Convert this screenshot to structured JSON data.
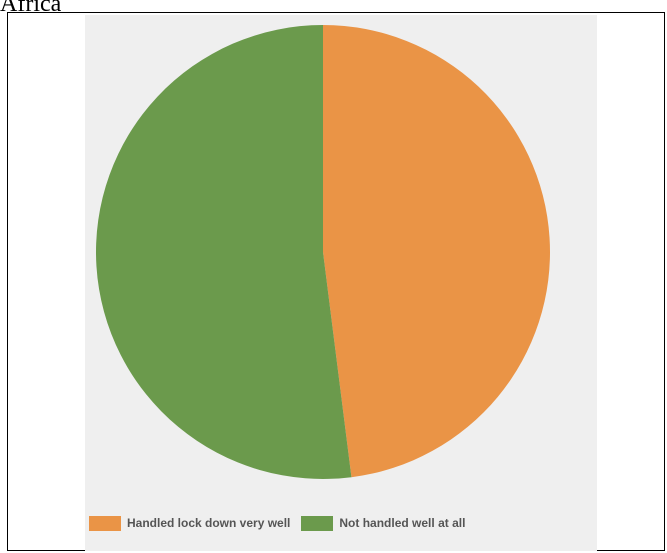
{
  "heading": "Africa",
  "colors": {
    "slice_1": "#ea9446",
    "slice_2": "#6b9a4c",
    "panel_background": "#efefef"
  },
  "chart_data": {
    "type": "pie",
    "title": "",
    "legend_position": "bottom",
    "slices": [
      {
        "label": "Handled lock down very well",
        "value": 48,
        "color": "#ea9446"
      },
      {
        "label": "Not handled well at all",
        "value": 52,
        "color": "#6b9a4c"
      }
    ]
  }
}
